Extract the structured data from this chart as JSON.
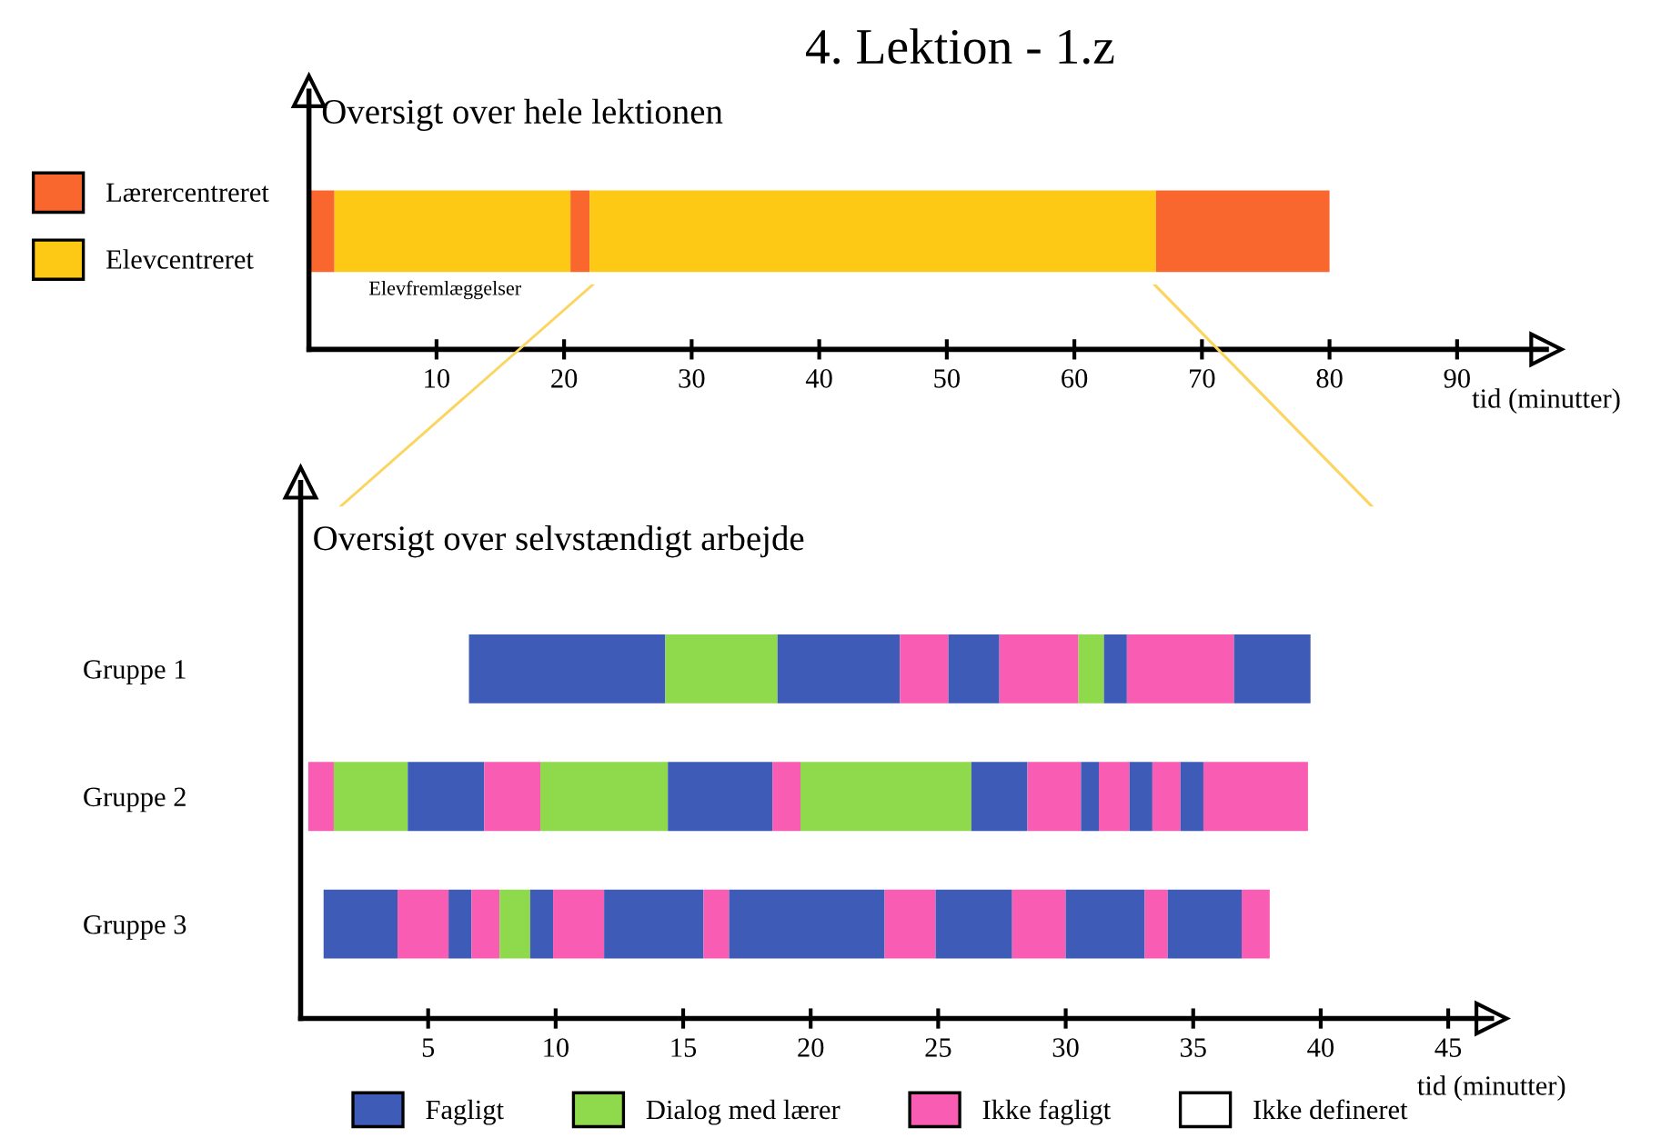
{
  "chart_data": [
    {
      "type": "bar",
      "orientation": "horizontal",
      "title": "4. Lektion - 1.z",
      "subtitle": "Oversigt over hele lektionen",
      "xlabel": "tid (minutter)",
      "categories": [
        null
      ],
      "xlim": [
        0,
        97
      ],
      "xticks": [
        10,
        20,
        30,
        40,
        50,
        60,
        70,
        80,
        90
      ],
      "grid": false,
      "legend": "left",
      "annotations": [
        "Elevfremlæggelser"
      ],
      "series": [
        {
          "base": [
            0
          ],
          "values": [
            2
          ],
          "colors": [
            "#f9672e"
          ]
        },
        {
          "base": [
            2
          ],
          "values": [
            18.5
          ],
          "colors": [
            "#fec914"
          ]
        },
        {
          "base": [
            20.5
          ],
          "values": [
            1.5
          ],
          "colors": [
            "#f9672e"
          ]
        },
        {
          "base": [
            22
          ],
          "values": [
            44.4
          ],
          "colors": [
            "#fec914"
          ]
        },
        {
          "base": [
            66.4
          ],
          "values": [
            13.6
          ],
          "colors": [
            "#f9672e"
          ]
        },
        {
          "name": "Lærercentreret",
          "color": "#f9672e",
          "values": [
            null
          ]
        },
        {
          "name": "Elevcentreret",
          "color": "#fec914",
          "values": [
            null
          ]
        }
      ]
    },
    {
      "type": "bar",
      "orientation": "horizontal",
      "subtitle": "Oversigt over selvstændigt arbejde",
      "xlabel": "tid (minutter)",
      "categories": [
        "Gruppe 1",
        "Gruppe 2",
        "Gruppe 3"
      ],
      "xlim": [
        0,
        46.7
      ],
      "xticks": [
        5,
        10,
        15,
        20,
        25,
        30,
        35,
        40,
        45
      ],
      "grid": false,
      "legend": "bottom",
      "series": [
        {
          "base": [
            6.6,
            0.3,
            0.9
          ],
          "values": [
            7.7,
            1.0,
            2.9
          ],
          "colors": [
            "#3f5bb8",
            "#f95db3",
            "#3f5bb8"
          ]
        },
        {
          "base": [
            14.3,
            1.3,
            3.8
          ],
          "values": [
            4.4,
            2.9,
            2.0
          ],
          "colors": [
            "#8fd94c",
            "#8fd94c",
            "#f95db3"
          ]
        },
        {
          "base": [
            18.7,
            4.2,
            5.8
          ],
          "values": [
            4.8,
            3.0,
            0.9
          ],
          "colors": [
            "#3f5bb8",
            "#3f5bb8",
            "#3f5bb8"
          ]
        },
        {
          "base": [
            23.5,
            7.2,
            6.7
          ],
          "values": [
            1.9,
            2.2,
            1.1
          ],
          "colors": [
            "#f95db3",
            "#f95db3",
            "#f95db3"
          ]
        },
        {
          "base": [
            25.4,
            9.4,
            7.8
          ],
          "values": [
            2.0,
            5.0,
            1.2
          ],
          "colors": [
            "#3f5bb8",
            "#8fd94c",
            "#8fd94c"
          ]
        },
        {
          "base": [
            27.4,
            14.4,
            9.0
          ],
          "values": [
            3.1,
            4.1,
            0.9
          ],
          "colors": [
            "#f95db3",
            "#3f5bb8",
            "#3f5bb8"
          ]
        },
        {
          "base": [
            30.5,
            18.5,
            9.9
          ],
          "values": [
            1.0,
            1.1,
            2.0
          ],
          "colors": [
            "#8fd94c",
            "#f95db3",
            "#f95db3"
          ]
        },
        {
          "base": [
            31.5,
            19.6,
            11.9
          ],
          "values": [
            0.9,
            6.7,
            3.9
          ],
          "colors": [
            "#3f5bb8",
            "#8fd94c",
            "#3f5bb8"
          ]
        },
        {
          "base": [
            32.4,
            26.3,
            15.8
          ],
          "values": [
            4.2,
            2.2,
            1.0
          ],
          "colors": [
            "#f95db3",
            "#3f5bb8",
            "#f95db3"
          ]
        },
        {
          "base": [
            36.6,
            28.5,
            16.8
          ],
          "values": [
            3.0,
            2.1,
            6.1
          ],
          "colors": [
            "#3f5bb8",
            "#f95db3",
            "#3f5bb8"
          ]
        },
        {
          "base": [
            null,
            30.6,
            22.9
          ],
          "values": [
            null,
            0.7,
            2.0
          ],
          "colors": [
            null,
            "#3f5bb8",
            "#f95db3"
          ]
        },
        {
          "base": [
            null,
            31.3,
            24.9
          ],
          "values": [
            null,
            1.2,
            3.0
          ],
          "colors": [
            null,
            "#f95db3",
            "#3f5bb8"
          ]
        },
        {
          "base": [
            null,
            32.5,
            27.9
          ],
          "values": [
            null,
            0.9,
            2.1
          ],
          "colors": [
            null,
            "#3f5bb8",
            "#f95db3"
          ]
        },
        {
          "base": [
            null,
            33.4,
            30.0
          ],
          "values": [
            null,
            1.1,
            3.1
          ],
          "colors": [
            null,
            "#f95db3",
            "#3f5bb8"
          ]
        },
        {
          "base": [
            null,
            34.5,
            33.1
          ],
          "values": [
            null,
            0.9,
            0.9
          ],
          "colors": [
            null,
            "#3f5bb8",
            "#f95db3"
          ]
        },
        {
          "base": [
            null,
            35.4,
            34.0
          ],
          "values": [
            null,
            4.1,
            2.9
          ],
          "colors": [
            null,
            "#f95db3",
            "#3f5bb8"
          ]
        },
        {
          "base": [
            null,
            null,
            36.9
          ],
          "values": [
            null,
            null,
            1.1
          ],
          "colors": [
            null,
            null,
            "#f95db3"
          ]
        },
        {
          "name": "Fagligt",
          "color": "#3f5bb8",
          "values": [
            null,
            null,
            null
          ]
        },
        {
          "name": "Dialog med lærer",
          "color": "#8fd94c",
          "values": [
            null,
            null,
            null
          ]
        },
        {
          "name": "Ikke fagligt",
          "color": "#f95db3",
          "values": [
            null,
            null,
            null
          ]
        },
        {
          "name": "Ikke defineret",
          "color": "#ffffff",
          "values": [
            null,
            null,
            null
          ]
        }
      ]
    }
  ]
}
